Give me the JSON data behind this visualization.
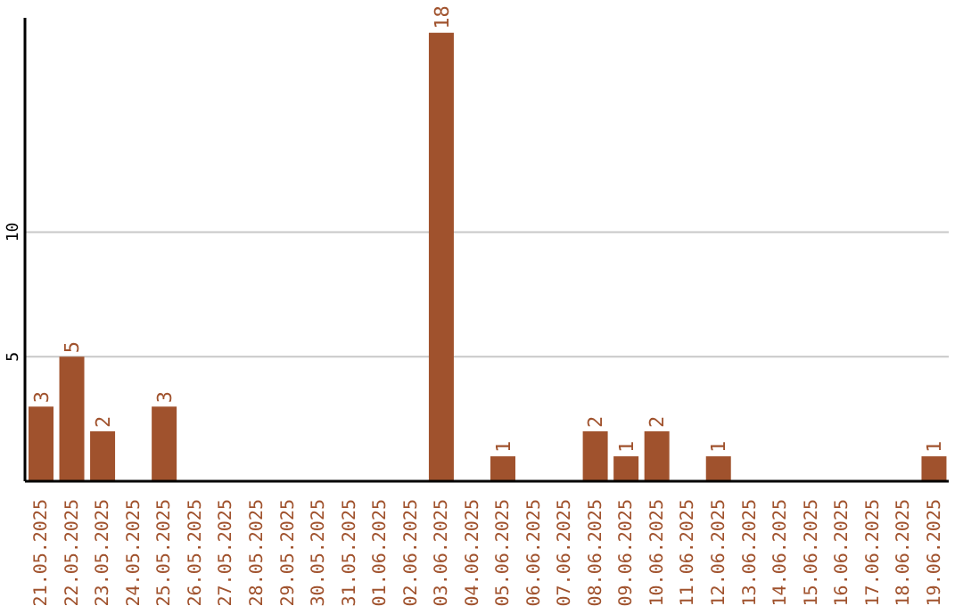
{
  "chart_data": {
    "type": "bar",
    "categories": [
      "21.05.2025",
      "22.05.2025",
      "23.05.2025",
      "24.05.2025",
      "25.05.2025",
      "26.05.2025",
      "27.05.2025",
      "28.05.2025",
      "29.05.2025",
      "30.05.2025",
      "31.05.2025",
      "01.06.2025",
      "02.06.2025",
      "03.06.2025",
      "04.06.2025",
      "05.06.2025",
      "06.06.2025",
      "07.06.2025",
      "08.06.2025",
      "09.06.2025",
      "10.06.2025",
      "11.06.2025",
      "12.06.2025",
      "13.06.2025",
      "14.06.2025",
      "15.06.2025",
      "16.06.2025",
      "17.06.2025",
      "18.06.2025",
      "19.06.2025"
    ],
    "values": [
      3,
      5,
      2,
      0,
      3,
      0,
      0,
      0,
      0,
      0,
      0,
      0,
      0,
      18,
      0,
      1,
      0,
      0,
      2,
      1,
      2,
      0,
      1,
      0,
      0,
      0,
      0,
      0,
      0,
      1
    ],
    "value_labels": [
      "3",
      "5",
      "2",
      null,
      "3",
      null,
      null,
      null,
      null,
      null,
      null,
      null,
      null,
      "18",
      null,
      "1",
      null,
      null,
      "2",
      "1",
      "2",
      null,
      "1",
      null,
      null,
      null,
      null,
      null,
      null,
      "1"
    ],
    "color": "#a0522d",
    "ylim": [
      0,
      18.6
    ],
    "yticks": [
      5,
      10
    ],
    "grid": "y",
    "legend": false
  }
}
